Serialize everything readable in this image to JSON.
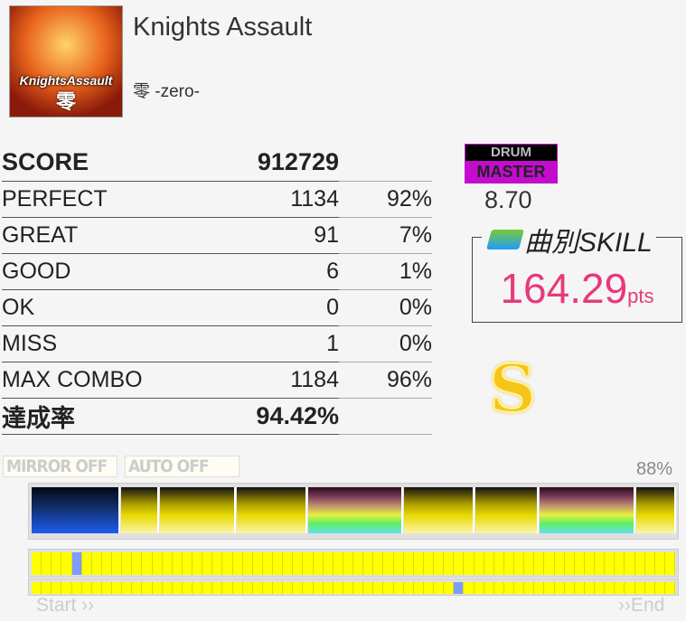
{
  "song": {
    "title": "Knights Assault",
    "artist": "零 -zero-",
    "jacket_text": "KnightsAssault",
    "jacket_subtext": "零"
  },
  "results": [
    {
      "label": "SCORE",
      "value": "912729",
      "percent": ""
    },
    {
      "label": "PERFECT",
      "value": "1134",
      "percent": "92%"
    },
    {
      "label": "GREAT",
      "value": "91",
      "percent": "7%"
    },
    {
      "label": "GOOD",
      "value": "6",
      "percent": "1%"
    },
    {
      "label": "OK",
      "value": "0",
      "percent": "0%"
    },
    {
      "label": "MISS",
      "value": "1",
      "percent": "0%"
    },
    {
      "label": "MAX COMBO",
      "value": "1184",
      "percent": "96%"
    },
    {
      "label": "達成率",
      "value": "94.42%",
      "percent": ""
    }
  ],
  "difficulty": {
    "instrument": "DRUM",
    "level_name": "MASTER",
    "level": "8.70",
    "color": "#c40ccf"
  },
  "skill": {
    "label": "曲別SKILL",
    "value": "164.29",
    "unit": "pts",
    "color": "#e8397a"
  },
  "rank": "S",
  "options": {
    "mirror": "MIRROR OFF",
    "auto": "AUTO OFF"
  },
  "gauge": {
    "percent_label": "88%",
    "segments": [
      "blue",
      "yellow",
      "yellow",
      "yellow",
      "rainbow",
      "yellow",
      "yellow",
      "rainbow",
      "yellow"
    ]
  },
  "progress": {
    "cells": 64,
    "miss_row1": [
      4
    ],
    "miss_row2": [
      42
    ],
    "start_label": "Start ››",
    "end_label": "››End"
  }
}
